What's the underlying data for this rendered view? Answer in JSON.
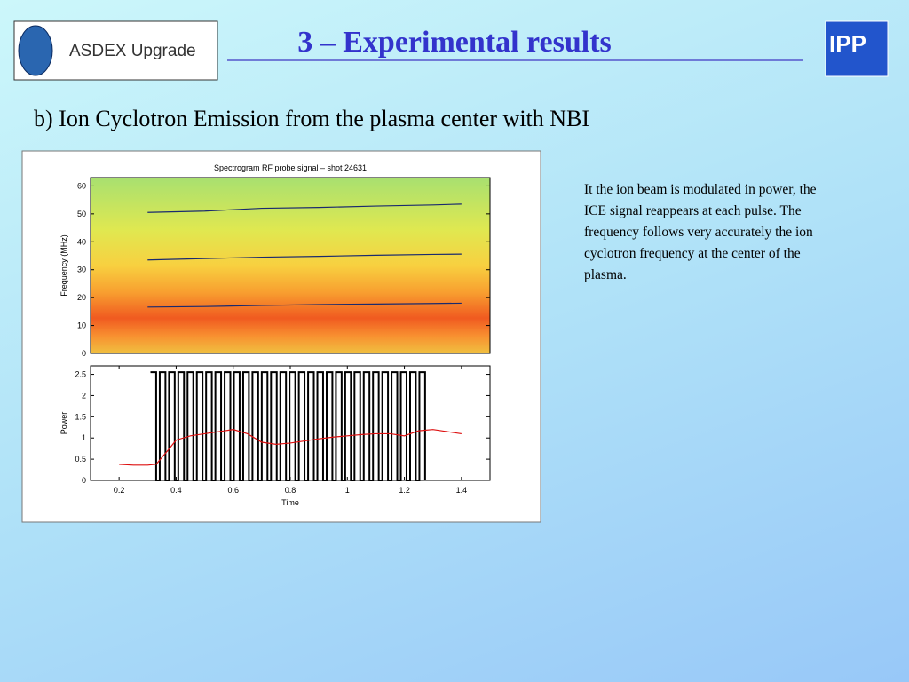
{
  "header": {
    "logo_text": "ASDEX Upgrade",
    "title": "3 – Experimental results",
    "institute": "IPP"
  },
  "subtitle": "b) Ion Cyclotron Emission from the plasma center with NBI",
  "description": "It the ion beam is modulated in power, the ICE signal reappears at each pulse. The frequency follows very accurately the ion cyclotron frequency at the center of the plasma.",
  "chart_data": [
    {
      "type": "line",
      "title": "Spectrogram RF probe signal – shot 24631",
      "ylabel": "Frequency (MHz)",
      "xlim": [
        0.1,
        1.5
      ],
      "ylim": [
        0,
        63
      ],
      "yticks": [
        0,
        10,
        20,
        30,
        40,
        50,
        60
      ],
      "series": [
        {
          "color": "#1a2a6e",
          "x": [
            0.3,
            0.5,
            0.7,
            0.9,
            1.1,
            1.3,
            1.4
          ],
          "values": [
            50.5,
            51,
            52,
            52.3,
            52.8,
            53.2,
            53.5
          ]
        },
        {
          "color": "#1a2a6e",
          "x": [
            0.3,
            0.5,
            0.7,
            0.9,
            1.1,
            1.3,
            1.4
          ],
          "values": [
            33.5,
            34,
            34.5,
            34.8,
            35.2,
            35.5,
            35.6
          ]
        },
        {
          "color": "#1a2a6e",
          "x": [
            0.3,
            0.5,
            0.7,
            0.9,
            1.1,
            1.3,
            1.4
          ],
          "values": [
            16.6,
            16.8,
            17.2,
            17.5,
            17.7,
            17.9,
            18
          ]
        }
      ]
    },
    {
      "type": "line",
      "ylabel": "Power",
      "xlabel": "Time",
      "xlim": [
        0.1,
        1.5
      ],
      "ylim": [
        0,
        2.7
      ],
      "xticks": [
        0.2,
        0.4,
        0.6,
        0.8,
        1,
        1.2,
        1.4
      ],
      "yticks": [
        0,
        0.5,
        1,
        1.5,
        2,
        2.5
      ],
      "series": [
        {
          "color": "#000000",
          "step": true,
          "x": [
            0.31,
            0.33,
            0.3425,
            0.3625,
            0.375,
            0.395,
            0.4075,
            0.4275,
            0.44,
            0.46,
            0.4725,
            0.4925,
            0.505,
            0.525,
            0.5375,
            0.5575,
            0.57,
            0.59,
            0.6025,
            0.6225,
            0.635,
            0.655,
            0.6675,
            0.6875,
            0.7,
            0.72,
            0.7325,
            0.7525,
            0.765,
            0.785,
            0.7975,
            0.8175,
            0.83,
            0.85,
            0.8625,
            0.8825,
            0.895,
            0.915,
            0.9275,
            0.9475,
            0.96,
            0.98,
            0.9925,
            1.0125,
            1.025,
            1.045,
            1.0575,
            1.0775,
            1.09,
            1.11,
            1.1225,
            1.1425,
            1.155,
            1.175,
            1.1875,
            1.2075,
            1.22,
            1.24,
            1.2525,
            1.2725
          ],
          "values": [
            2.55,
            0,
            2.55,
            0,
            2.55,
            0,
            2.55,
            0,
            2.55,
            0,
            2.55,
            0,
            2.55,
            0,
            2.55,
            0,
            2.55,
            0,
            2.55,
            0,
            2.55,
            0,
            2.55,
            0,
            2.55,
            0,
            2.55,
            0,
            2.55,
            0,
            2.55,
            0,
            2.55,
            0,
            2.55,
            0,
            2.55,
            0,
            2.55,
            0,
            2.55,
            0,
            2.55,
            0,
            2.55,
            0,
            2.55,
            0,
            2.55,
            0,
            2.55,
            0,
            2.55,
            0,
            2.55,
            0,
            2.55,
            0,
            2.55,
            0
          ]
        },
        {
          "color": "#dd1111",
          "x": [
            0.2,
            0.25,
            0.3,
            0.33,
            0.37,
            0.4,
            0.45,
            0.5,
            0.55,
            0.6,
            0.65,
            0.7,
            0.75,
            0.8,
            0.85,
            0.9,
            0.95,
            1.0,
            1.05,
            1.1,
            1.15,
            1.2,
            1.25,
            1.3,
            1.35,
            1.4
          ],
          "values": [
            0.38,
            0.36,
            0.36,
            0.38,
            0.7,
            0.95,
            1.05,
            1.1,
            1.15,
            1.2,
            1.1,
            0.9,
            0.85,
            0.88,
            0.93,
            0.98,
            1.02,
            1.05,
            1.08,
            1.1,
            1.1,
            1.05,
            1.17,
            1.2,
            1.15,
            1.1
          ]
        }
      ]
    }
  ]
}
